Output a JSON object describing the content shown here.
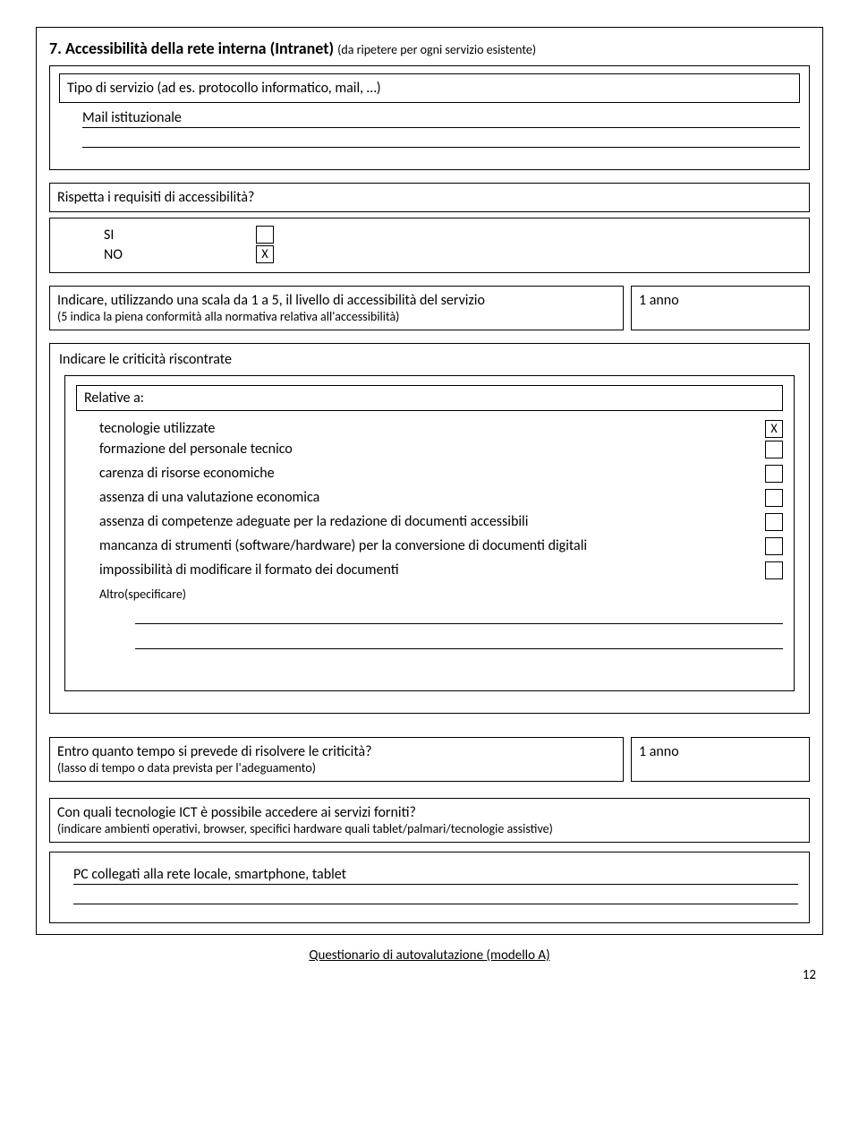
{
  "section": {
    "num": "7.",
    "title": "Accessibilità della rete interna (Intranet)",
    "subtitle": "(da ripetere per ogni servizio esistente)"
  },
  "tipo_label": "Tipo di servizio (ad es. protocollo informatico, mail, …)",
  "tipo_value": "Mail istituzionale",
  "rispetta_label": "Rispetta i requisiti di accessibilità?",
  "si_label": "SI",
  "no_label": "NO",
  "si_checked": "",
  "no_checked": "X",
  "scale_text_1": "Indicare, utilizzando una scala da 1 a 5, il livello di accessibilità del servizio",
  "scale_text_2": "(5 indica la piena conformità alla normativa relativa all'accessibilità)",
  "scale_value": "1 anno",
  "crit_label": "Indicare le criticità riscontrate",
  "rel_label": "Relative a:",
  "items": {
    "r0": {
      "text": "tecnologie utilizzate",
      "chk": "X"
    },
    "r1": {
      "text": "formazione del personale tecnico",
      "chk": ""
    },
    "r2": {
      "text": "carenza di risorse economiche",
      "chk": ""
    },
    "r3": {
      "text": "assenza di una valutazione economica",
      "chk": ""
    },
    "r4": {
      "text": "assenza di competenze adeguate per la redazione di documenti accessibili",
      "chk": ""
    },
    "r5": {
      "text": "mancanza di strumenti (software/hardware) per la conversione di documenti digitali",
      "chk": ""
    },
    "r6": {
      "text": "impossibilità di modificare il formato dei documenti",
      "chk": ""
    }
  },
  "altro_label": "Altro(specificare)",
  "entro_q1": "Entro quanto tempo si prevede di risolvere le criticità?",
  "entro_q2": "(lasso di tempo o data prevista per l'adeguamento)",
  "entro_value": "1 anno",
  "tech_q1": "Con quali tecnologie ICT è possibile accedere ai servizi forniti?",
  "tech_q2": "(indicare ambienti operativi, browser, specifici hardware quali tablet/palmari/tecnologie assistive)",
  "tech_value": "PC collegati alla rete locale, smartphone, tablet",
  "footer": "Questionario di autovalutazione (modello A)",
  "pagenum": "12"
}
